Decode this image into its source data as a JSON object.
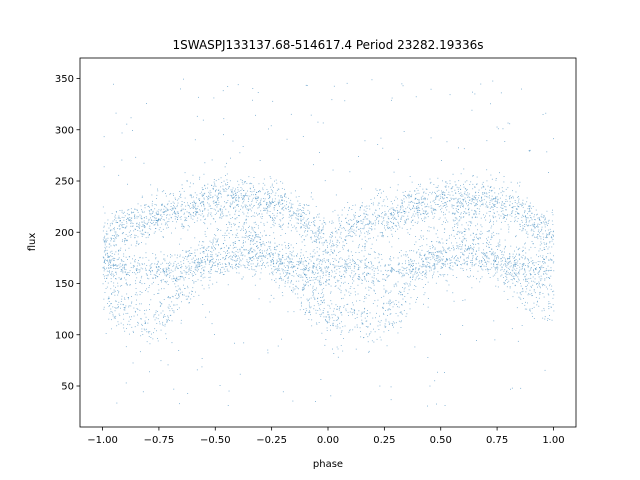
{
  "chart_data": {
    "type": "scatter",
    "title": "1SWASPJ133137.68-514617.4 Period 23282.19336s",
    "xlabel": "phase",
    "ylabel": "flux",
    "xlim": [
      -1.1,
      1.1
    ],
    "ylim": [
      10,
      370
    ],
    "xticks": [
      -1.0,
      -0.75,
      -0.5,
      -0.25,
      0.0,
      0.25,
      0.5,
      0.75,
      1.0
    ],
    "xtick_labels": [
      "−1.00",
      "−0.75",
      "−0.50",
      "−0.25",
      "0.00",
      "0.25",
      "0.50",
      "0.75",
      "1.00"
    ],
    "yticks": [
      50,
      100,
      150,
      200,
      250,
      300,
      350
    ],
    "ytick_labels": [
      "50",
      "100",
      "150",
      "200",
      "250",
      "300",
      "350"
    ],
    "grid": false,
    "marker_color": "#1f77b4",
    "description_of_series": "Phase-folded light curve, densely sampled; repeated for phase −1 to 1",
    "series": [
      {
        "x": [
          -1.0,
          -0.9,
          -0.8,
          -0.7,
          -0.6,
          -0.5,
          -0.4,
          -0.3,
          -0.2,
          -0.1,
          0.0,
          0.1,
          0.2,
          0.3,
          0.4,
          0.5,
          0.6,
          0.7,
          0.8,
          0.9,
          1.0
        ],
        "upper_branch": [
          195,
          205,
          212,
          220,
          226,
          230,
          232,
          231,
          225,
          210,
          190,
          205,
          212,
          220,
          226,
          230,
          232,
          231,
          225,
          210,
          195
        ],
        "middle_branch": [
          170,
          165,
          162,
          165,
          170,
          172,
          174,
          173,
          170,
          165,
          160,
          165,
          162,
          165,
          170,
          172,
          174,
          173,
          170,
          165,
          170
        ],
        "lower_branch": [
          140,
          125,
          115,
          130,
          160,
          185,
          200,
          190,
          165,
          140,
          120,
          125,
          115,
          130,
          160,
          185,
          200,
          190,
          165,
          140,
          140
        ]
      }
    ]
  }
}
